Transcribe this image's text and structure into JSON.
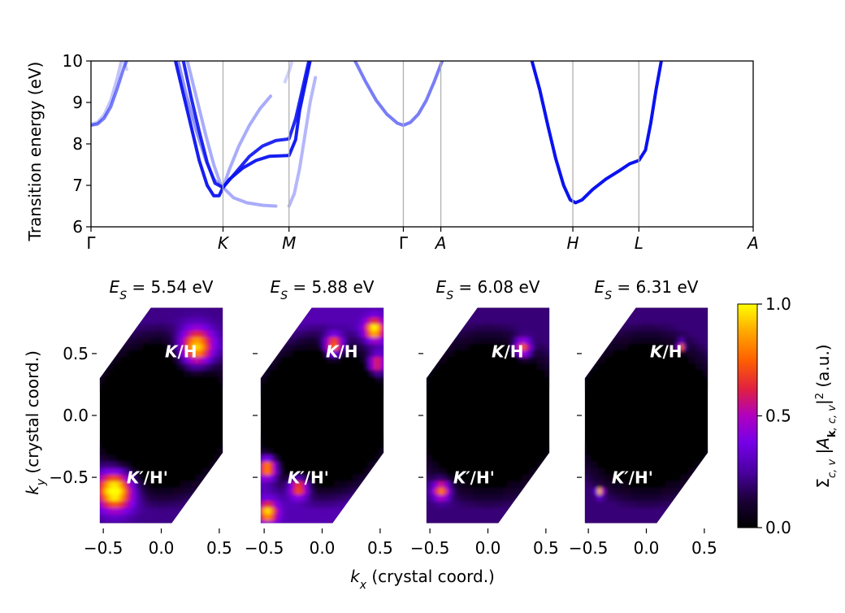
{
  "chart_data": [
    {
      "type": "line",
      "ylabel": "Transition energy (eV)",
      "ylim": [
        6,
        10
      ],
      "yticks": [
        "6",
        "7",
        "8",
        "9",
        "10"
      ],
      "kpath_labels": [
        {
          "label": "Γ",
          "x": 0.0
        },
        {
          "label": "K",
          "x": 1.0
        },
        {
          "label": "M",
          "x": 1.5
        },
        {
          "label": "Γ",
          "x": 2.366
        },
        {
          "label": "A",
          "x": 2.65
        },
        {
          "label": "H",
          "x": 3.65
        },
        {
          "label": "L",
          "x": 4.15
        },
        {
          "label": "A",
          "x": 5.016
        }
      ],
      "bands": [
        {
          "opacity": 0.55,
          "points": [
            [
              0,
              8.45
            ],
            [
              0.05,
              8.48
            ],
            [
              0.1,
              8.62
            ],
            [
              0.15,
              8.9
            ],
            [
              0.2,
              9.35
            ],
            [
              0.25,
              9.85
            ],
            [
              0.27,
              10.0
            ]
          ]
        },
        {
          "opacity": 0.25,
          "points": [
            [
              0,
              8.47
            ],
            [
              0.05,
              8.52
            ],
            [
              0.1,
              8.7
            ],
            [
              0.15,
              9.05
            ],
            [
              0.2,
              9.6
            ],
            [
              0.23,
              10.0
            ]
          ]
        },
        {
          "opacity": 0.2,
          "points": [
            [
              0.25,
              10.0
            ],
            [
              0.27,
              9.8
            ]
          ]
        },
        {
          "opacity": 0.95,
          "points": [
            [
              0.64,
              10.0
            ],
            [
              0.7,
              9.2
            ],
            [
              0.76,
              8.4
            ],
            [
              0.82,
              7.6
            ],
            [
              0.88,
              7.0
            ],
            [
              0.93,
              6.75
            ],
            [
              0.97,
              6.75
            ],
            [
              1.0,
              6.95
            ],
            [
              1.05,
              7.15
            ],
            [
              1.15,
              7.42
            ],
            [
              1.25,
              7.6
            ],
            [
              1.35,
              7.7
            ],
            [
              1.5,
              7.72
            ],
            [
              1.55,
              8.1
            ],
            [
              1.58,
              8.8
            ],
            [
              1.62,
              9.4
            ],
            [
              1.66,
              10.0
            ]
          ]
        },
        {
          "opacity": 0.9,
          "points": [
            [
              0.7,
              10.0
            ],
            [
              0.76,
              9.1
            ],
            [
              0.82,
              8.3
            ],
            [
              0.88,
              7.55
            ],
            [
              0.94,
              7.05
            ],
            [
              1.0,
              6.95
            ],
            [
              1.08,
              7.25
            ],
            [
              1.2,
              7.7
            ],
            [
              1.3,
              7.95
            ],
            [
              1.4,
              8.08
            ],
            [
              1.5,
              8.12
            ],
            [
              1.55,
              8.6
            ],
            [
              1.6,
              9.3
            ],
            [
              1.65,
              10.0
            ]
          ]
        },
        {
          "opacity": 0.45,
          "points": [
            [
              0.66,
              10.0
            ],
            [
              0.72,
              9.2
            ],
            [
              0.8,
              8.3
            ],
            [
              0.87,
              7.6
            ],
            [
              0.93,
              7.15
            ],
            [
              0.98,
              6.98
            ],
            [
              1.0,
              6.95
            ]
          ]
        },
        {
          "opacity": 0.35,
          "points": [
            [
              0.73,
              10.0
            ],
            [
              0.8,
              9.1
            ],
            [
              0.87,
              8.2
            ],
            [
              0.93,
              7.5
            ],
            [
              0.98,
              7.05
            ],
            [
              1.0,
              6.95
            ]
          ]
        },
        {
          "opacity": 0.35,
          "points": [
            [
              1.0,
              6.95
            ],
            [
              1.05,
              7.4
            ],
            [
              1.12,
              7.95
            ],
            [
              1.2,
              8.45
            ],
            [
              1.28,
              8.85
            ],
            [
              1.36,
              9.15
            ]
          ]
        },
        {
          "opacity": 0.35,
          "points": [
            [
              1.0,
              6.95
            ],
            [
              1.08,
              6.7
            ],
            [
              1.18,
              6.58
            ],
            [
              1.3,
              6.52
            ],
            [
              1.4,
              6.5
            ]
          ]
        },
        {
          "opacity": 0.3,
          "points": [
            [
              1.5,
              6.5
            ],
            [
              1.54,
              6.8
            ],
            [
              1.58,
              7.4
            ],
            [
              1.62,
              8.2
            ],
            [
              1.66,
              9.0
            ],
            [
              1.7,
              9.6
            ]
          ]
        },
        {
          "opacity": 0.2,
          "points": [
            [
              1.47,
              9.5
            ],
            [
              1.5,
              9.75
            ],
            [
              1.52,
              9.95
            ]
          ]
        },
        {
          "opacity": 0.55,
          "points": [
            [
              2.0,
              10.0
            ],
            [
              2.08,
              9.5
            ],
            [
              2.16,
              9.05
            ],
            [
              2.24,
              8.72
            ],
            [
              2.32,
              8.5
            ],
            [
              2.366,
              8.45
            ],
            [
              2.42,
              8.52
            ],
            [
              2.48,
              8.72
            ],
            [
              2.54,
              9.05
            ],
            [
              2.6,
              9.5
            ],
            [
              2.66,
              10.0
            ]
          ]
        },
        {
          "opacity": 1.0,
          "points": [
            [
              3.34,
              10.0
            ],
            [
              3.4,
              9.3
            ],
            [
              3.46,
              8.45
            ],
            [
              3.52,
              7.65
            ],
            [
              3.58,
              7.0
            ],
            [
              3.63,
              6.65
            ],
            [
              3.67,
              6.58
            ],
            [
              3.72,
              6.65
            ],
            [
              3.8,
              6.9
            ],
            [
              3.9,
              7.15
            ],
            [
              4.0,
              7.35
            ],
            [
              4.08,
              7.52
            ],
            [
              4.15,
              7.6
            ],
            [
              4.2,
              7.85
            ],
            [
              4.24,
              8.5
            ],
            [
              4.28,
              9.3
            ],
            [
              4.32,
              10.0
            ]
          ]
        }
      ]
    },
    {
      "type": "heatmap",
      "title": "E_S = 5.54 eV",
      "title_value": "5.54 eV",
      "xlabel": "k_x (crystal coord.)",
      "ylabel": "k_y (crystal coord.)",
      "labels": [
        "K/H",
        "K'/H'"
      ],
      "hotspots": [
        {
          "x": 0.3,
          "y": 0.55,
          "intensity": 0.85,
          "spread": 0.14
        },
        {
          "x": -0.4,
          "y": -0.6,
          "intensity": 0.9,
          "spread": 0.15
        }
      ]
    },
    {
      "type": "heatmap",
      "title": "E_S = 5.88 eV",
      "title_value": "5.88 eV",
      "labels": [
        "K/H",
        "K'/H'"
      ],
      "hotspots": [
        {
          "x": 0.1,
          "y": 0.57,
          "intensity": 0.75,
          "spread": 0.08
        },
        {
          "x": 0.45,
          "y": 0.7,
          "intensity": 0.75,
          "spread": 0.08
        },
        {
          "x": 0.47,
          "y": 0.42,
          "intensity": 0.55,
          "spread": 0.07
        },
        {
          "x": -0.47,
          "y": -0.42,
          "intensity": 0.75,
          "spread": 0.08
        },
        {
          "x": -0.2,
          "y": -0.58,
          "intensity": 0.65,
          "spread": 0.08
        },
        {
          "x": -0.47,
          "y": -0.78,
          "intensity": 0.7,
          "spread": 0.08
        }
      ]
    },
    {
      "type": "heatmap",
      "title": "E_S = 6.08 eV",
      "title_value": "6.08 eV",
      "labels": [
        "K/H",
        "K'/H'"
      ],
      "hotspots": [
        {
          "x": 0.3,
          "y": 0.55,
          "intensity": 0.65,
          "spread": 0.07
        },
        {
          "x": -0.4,
          "y": -0.6,
          "intensity": 0.65,
          "spread": 0.07
        }
      ]
    },
    {
      "type": "heatmap",
      "title": "E_S = 6.31 eV",
      "title_value": "6.31 eV",
      "labels": [
        "K/H",
        "K'/H'"
      ],
      "hotspots": [
        {
          "x": 0.3,
          "y": 0.57,
          "intensity": 0.85,
          "spread": 0.03
        },
        {
          "x": -0.4,
          "y": -0.62,
          "intensity": 0.85,
          "spread": 0.03
        }
      ]
    }
  ],
  "colorbar": {
    "ticks": [
      "0.0",
      "0.5",
      "1.0"
    ],
    "label": "Σc,v |Ak,c,v|² (a.u.)"
  },
  "heatmap_axes": {
    "xticks": [
      "−0.5",
      "0.0",
      "0.5"
    ],
    "yticks": [
      "−0.5",
      "0.0",
      "0.5"
    ],
    "xlabel": "(crystal coord.)",
    "ylabel": "(crystal coord.)"
  }
}
